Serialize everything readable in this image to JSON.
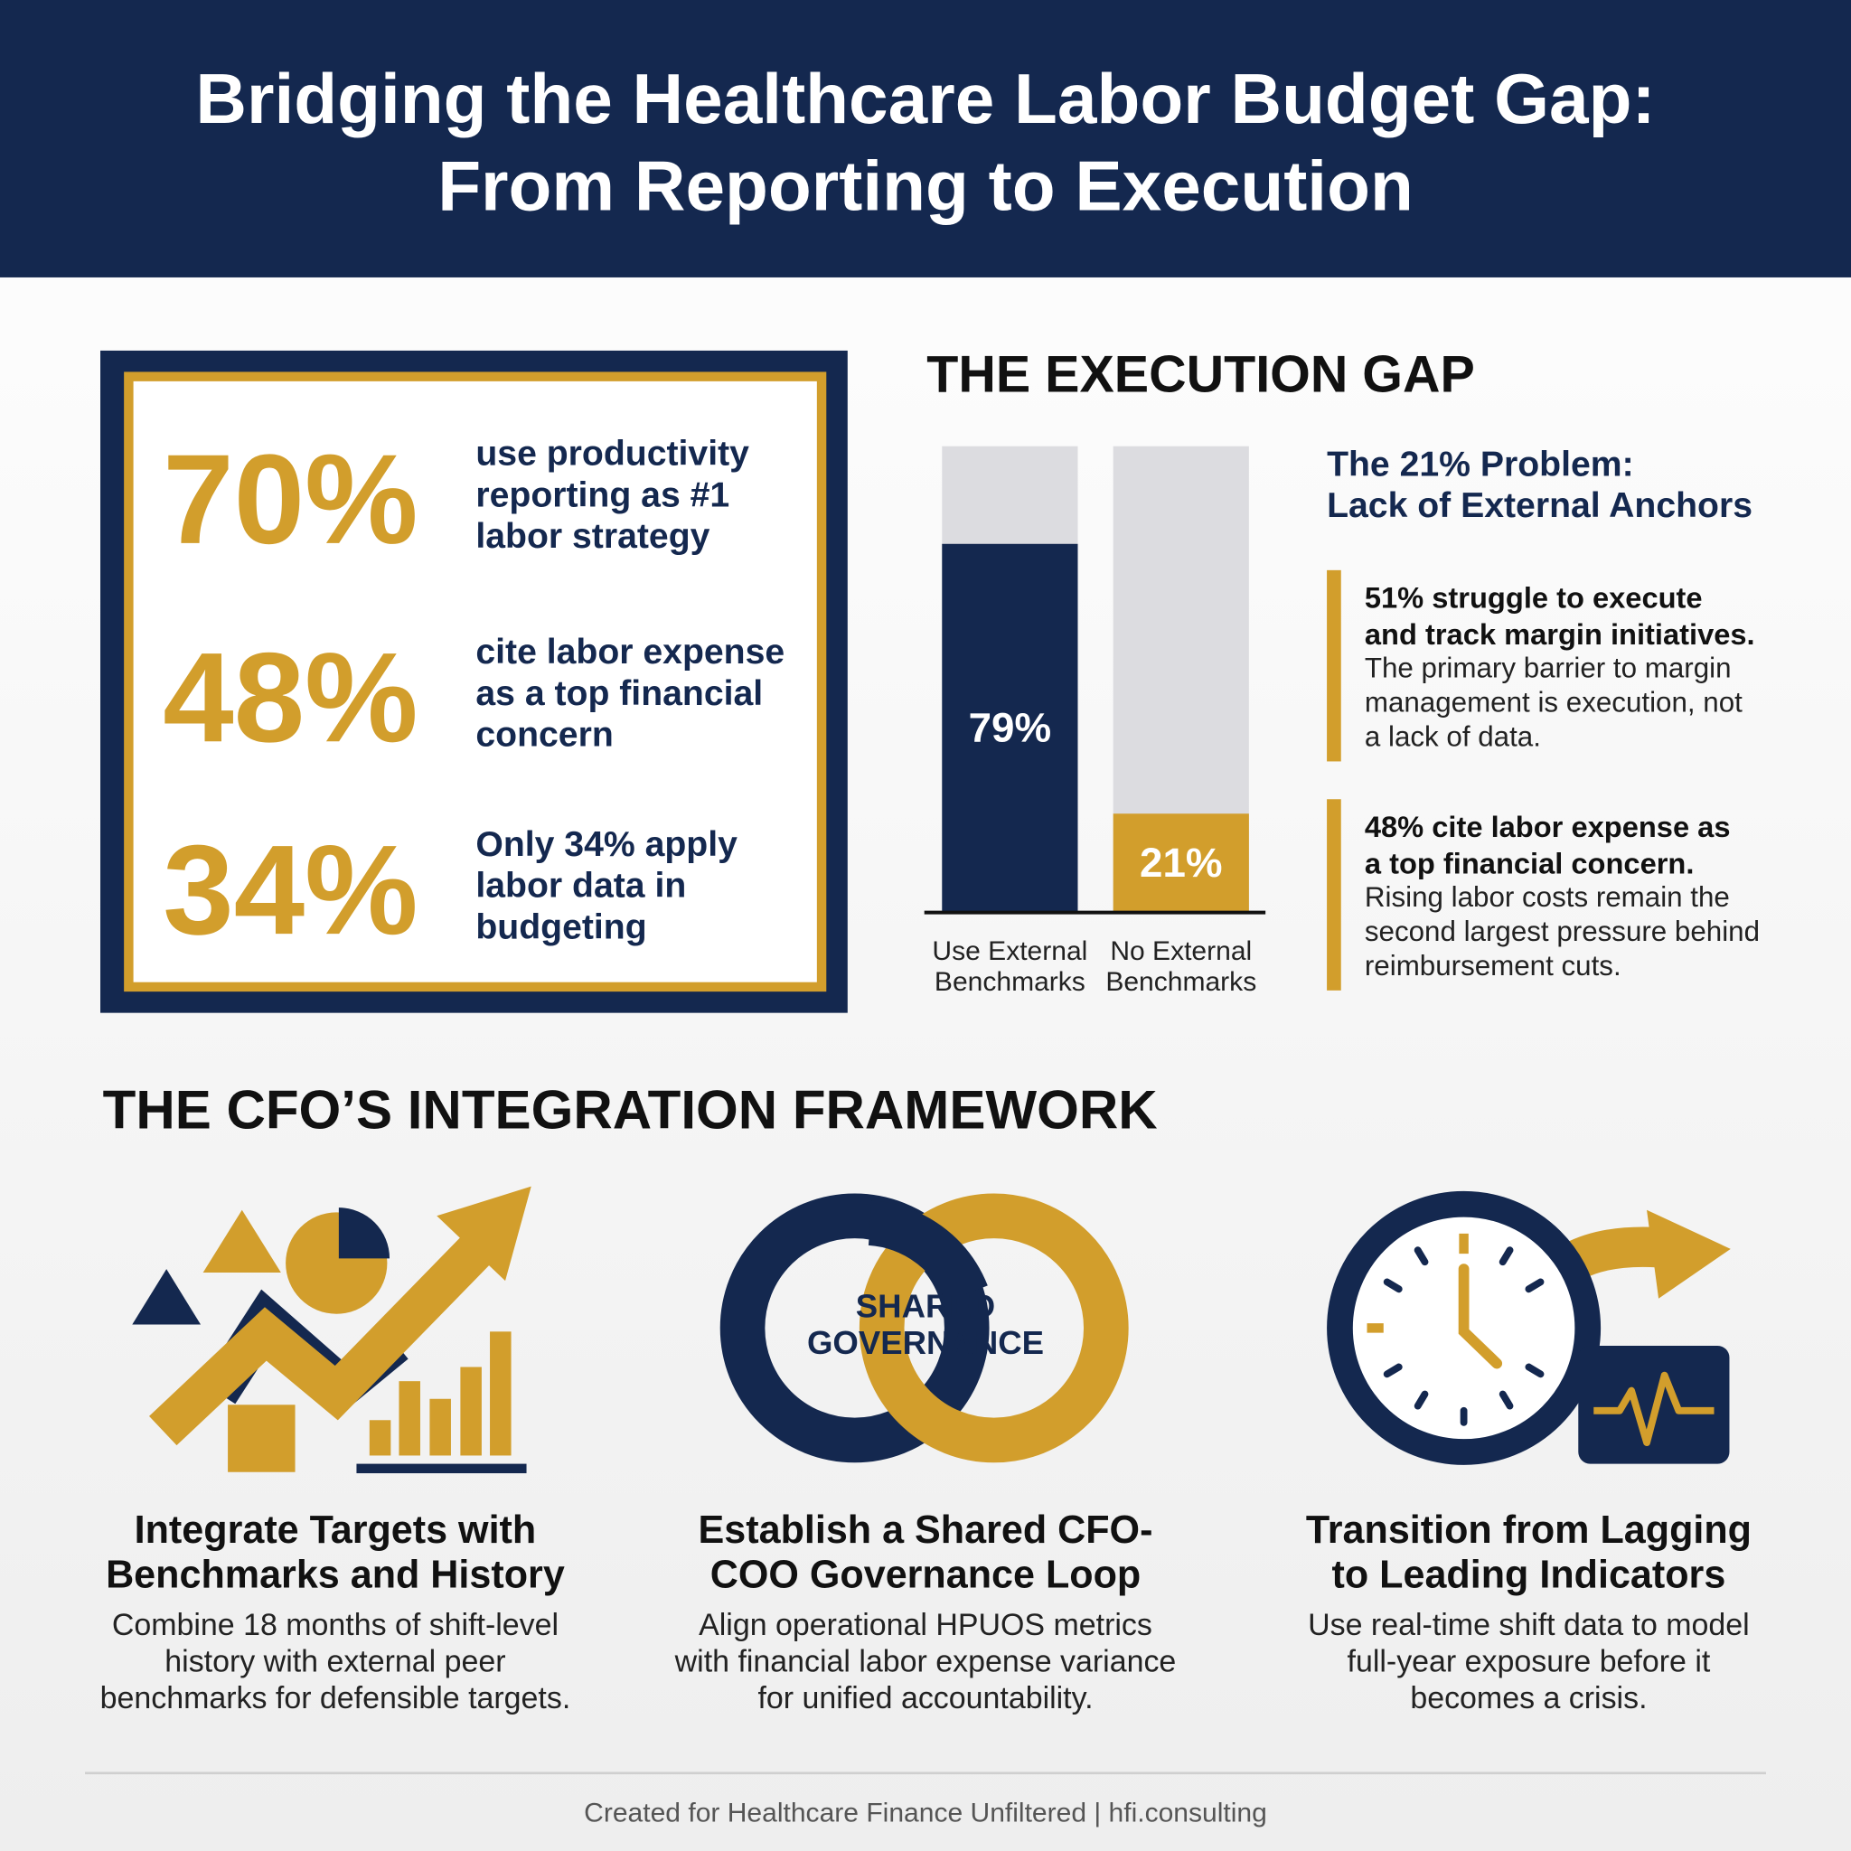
{
  "header": {
    "title": [
      "Bridging the Healthcare Labor Budget Gap:",
      "From Reporting to Execution"
    ]
  },
  "stats": [
    {
      "figure": "70%",
      "text": [
        "use productivity",
        "reporting as #1",
        "labor strategy"
      ]
    },
    {
      "figure": "48%",
      "text": [
        "cite labor expense",
        "as a top financial",
        "concern"
      ]
    },
    {
      "figure": "34%",
      "text": [
        "Only 34% apply",
        "labor data in",
        "budgeting"
      ]
    }
  ],
  "execution_gap": {
    "title": "THE EXECUTION GAP",
    "chart_data": {
      "type": "bar",
      "categories": [
        [
          "Use External",
          "Benchmarks"
        ],
        [
          "No External",
          "Benchmarks"
        ]
      ],
      "values": [
        79,
        21
      ],
      "value_labels": [
        "79%",
        "21%"
      ],
      "colors": [
        "#14284f",
        "#d29e2c"
      ],
      "ylim": [
        0,
        100
      ]
    },
    "problem": {
      "title": [
        "The 21% Problem:",
        "Lack of External Anchors"
      ],
      "points": [
        {
          "heading": [
            "51% struggle to execute",
            "and track margin initiatives."
          ],
          "body": [
            "The primary barrier to margin",
            "management is execution, not",
            "a lack of data."
          ]
        },
        {
          "heading": [
            "48% cite labor expense as",
            "a top financial concern."
          ],
          "body": [
            "Rising labor costs remain the",
            "second largest pressure behind",
            "reimbursement cuts."
          ]
        }
      ]
    }
  },
  "framework": {
    "title": "THE CFO’S INTEGRATION FRAMEWORK",
    "icon_label": [
      "SHARED",
      "GOVERNANCE"
    ],
    "items": [
      {
        "heading": [
          "Integrate Targets with",
          "Benchmarks and History"
        ],
        "body": [
          "Combine 18 months of shift-level",
          "history with external peer",
          "benchmarks for defensible targets."
        ]
      },
      {
        "heading": [
          "Establish a Shared CFO-",
          "COO Governance Loop"
        ],
        "body": [
          "Align operational HPUOS metrics",
          "with financial labor expense variance",
          "for unified accountability."
        ]
      },
      {
        "heading": [
          "Transition from Lagging",
          "to Leading Indicators"
        ],
        "body": [
          "Use real-time shift data to model",
          "full-year exposure before it",
          "becomes a crisis."
        ]
      }
    ]
  },
  "footer": "Created for Healthcare Finance Unfiltered  | hfi.consulting"
}
